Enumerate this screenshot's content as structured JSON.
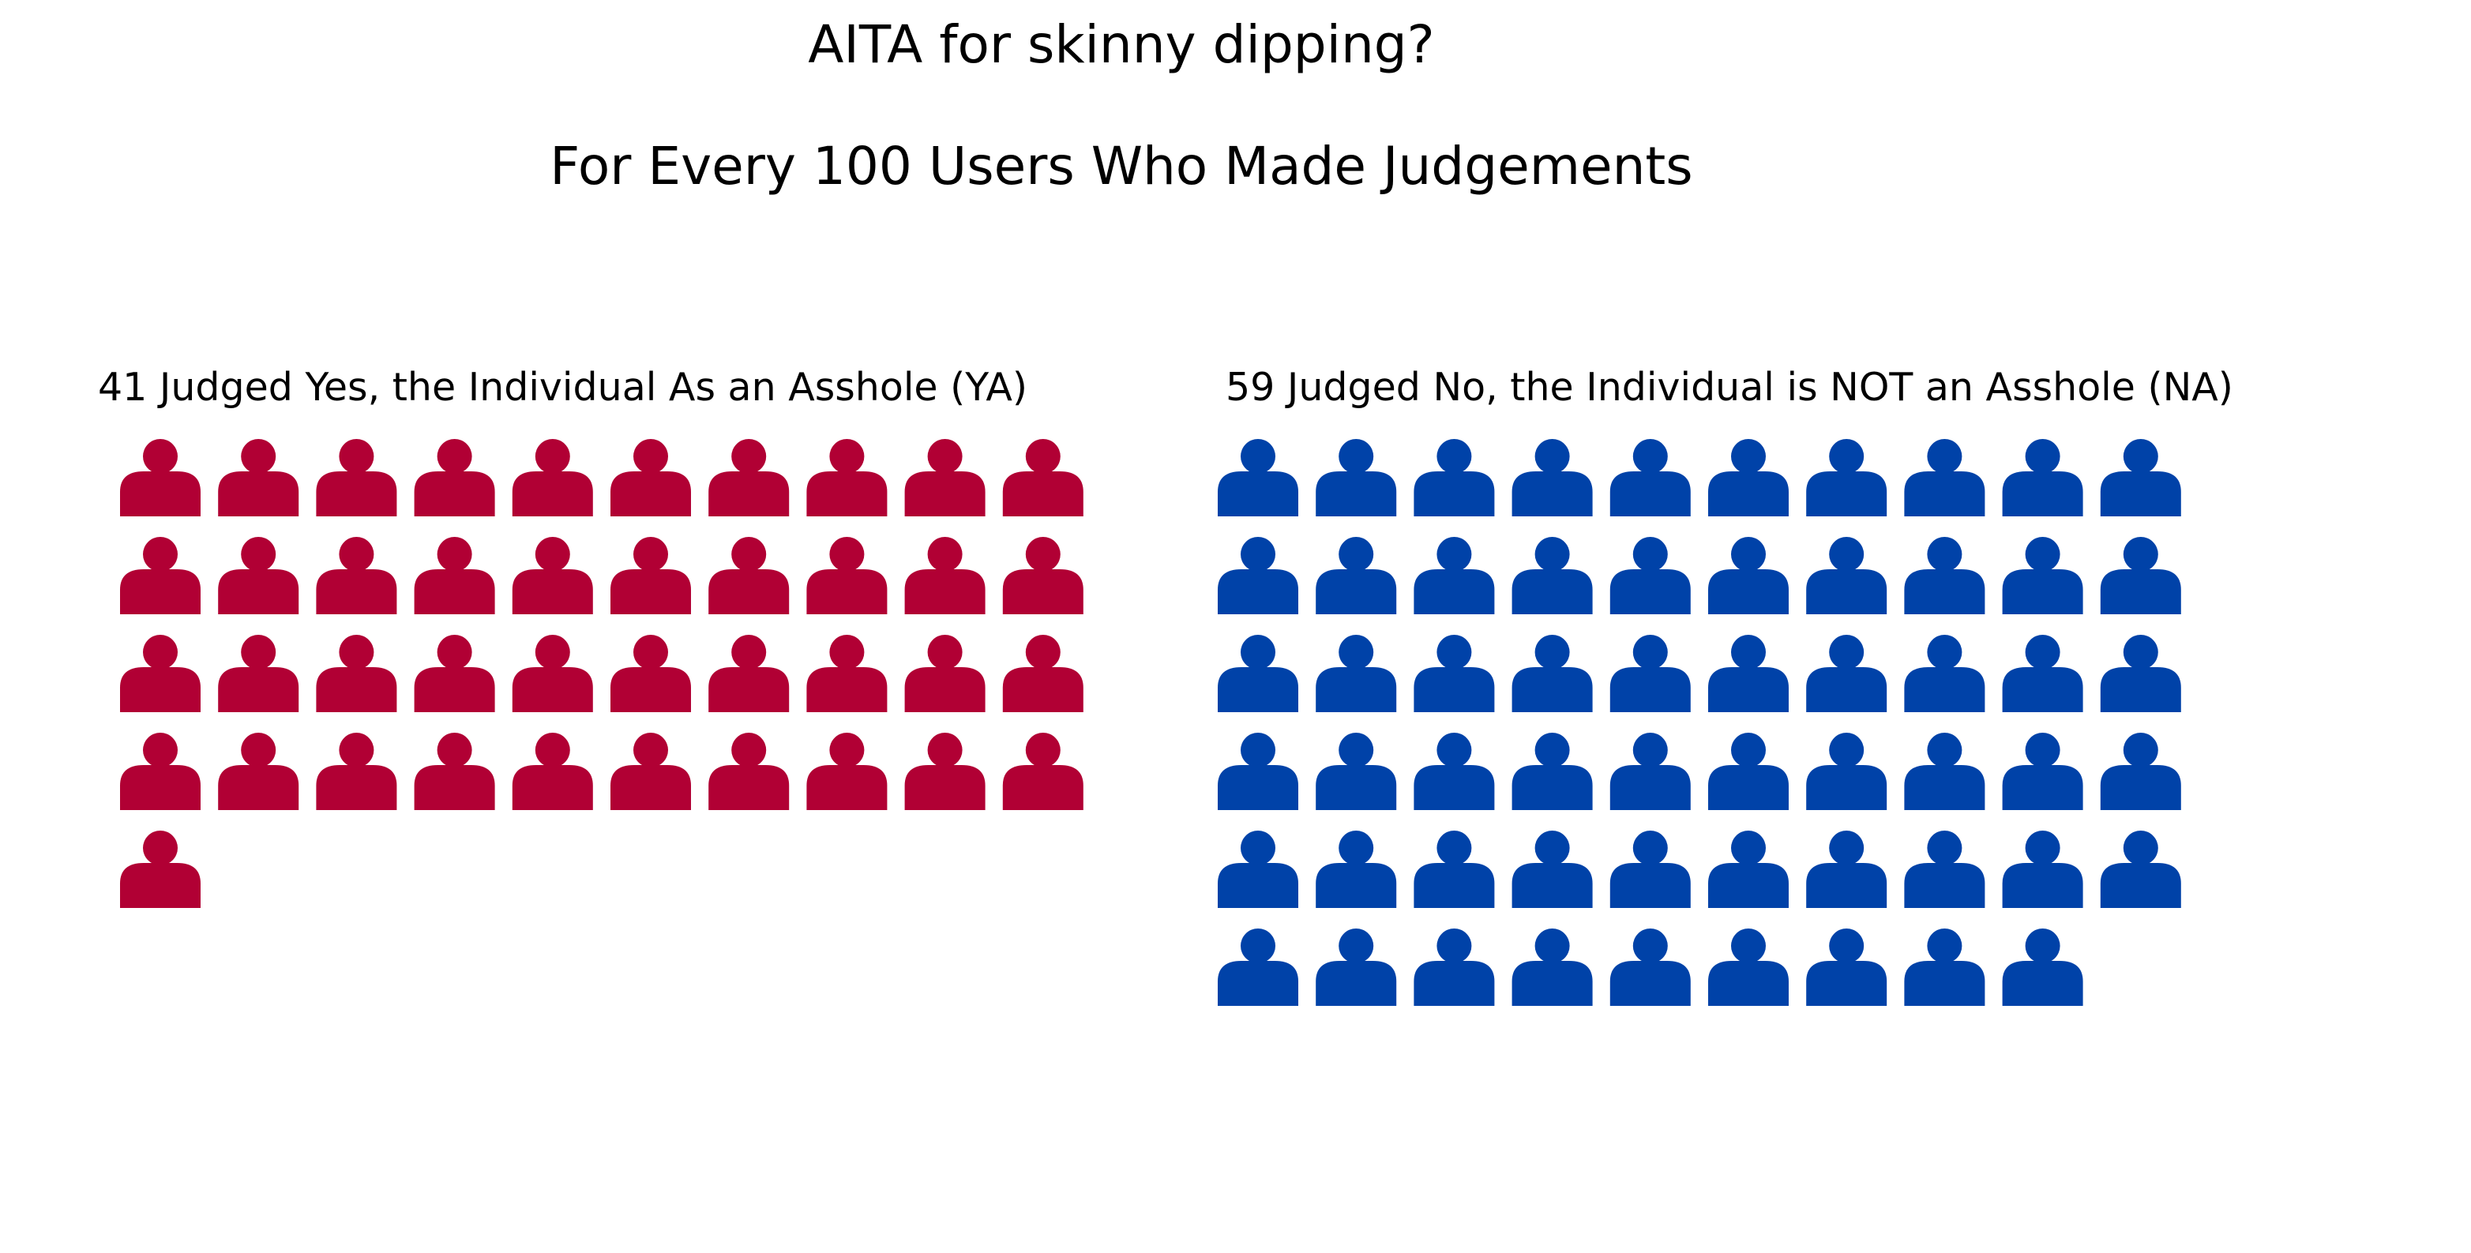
{
  "chart_data": {
    "type": "pictogram",
    "title": "AITA for skinny dipping?",
    "subtitle": "For Every 100 Users Who Made Judgements",
    "icon": "person-icon",
    "icons_per_row": 10,
    "panels": [
      {
        "key": "ya",
        "label": "41 Judged Yes, the Individual As an Asshole (YA)",
        "value": 41,
        "color": "#B10034"
      },
      {
        "key": "na",
        "label": "59 Judged No, the Individual is NOT an Asshole (NA)",
        "value": 59,
        "color": "#0042A8"
      }
    ]
  }
}
